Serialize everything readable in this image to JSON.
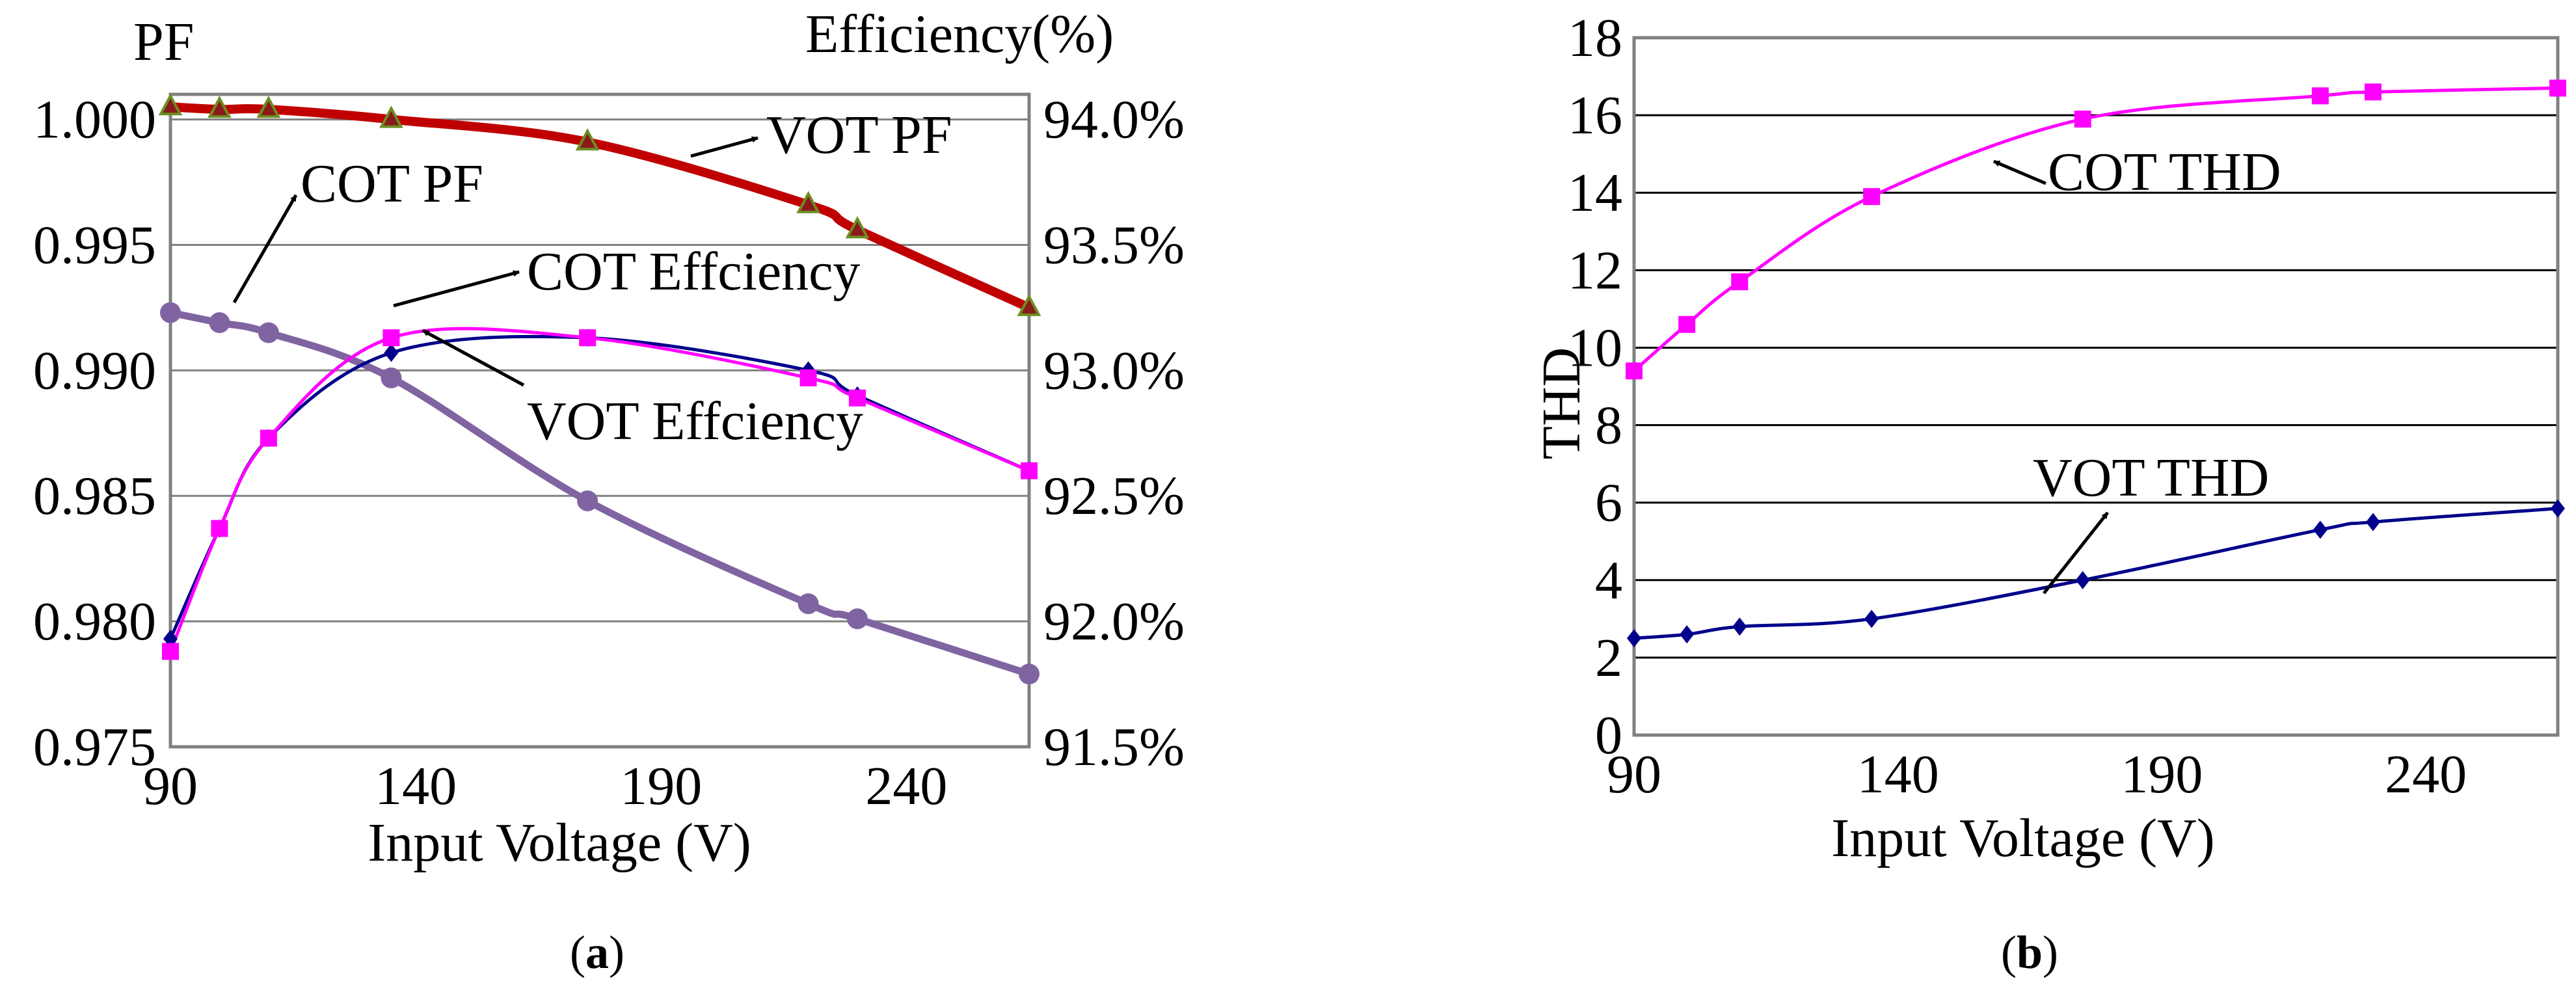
{
  "chart_data": [
    {
      "panel": "a",
      "panel_label": "a",
      "type": "line",
      "xlabel": "Input Voltage (V)",
      "ylabel_left": "PF",
      "ylabel_right": "Efficiency(%)",
      "xlim": [
        90,
        265
      ],
      "xticks": [
        90,
        140,
        190,
        240
      ],
      "ylim_left": [
        0.975,
        1.001
      ],
      "yticks_left": [
        "0.975",
        "0.980",
        "0.985",
        "0.990",
        "0.995",
        "1.000"
      ],
      "ylim_right": [
        91.5,
        94.1
      ],
      "yticks_right": [
        "91.5%",
        "92.0%",
        "92.5%",
        "93.0%",
        "93.5%",
        "94.0%"
      ],
      "grid": "horizontal",
      "series": [
        {
          "name": "VOT PF",
          "axis": "left",
          "color": "#C00000",
          "marker": "triangle",
          "x": [
            90,
            100,
            110,
            135,
            175,
            220,
            230,
            265
          ],
          "y": [
            1.0005,
            1.0004,
            1.0004,
            1.0,
            0.9991,
            0.9966,
            0.9956,
            0.9925
          ]
        },
        {
          "name": "COT PF",
          "axis": "left",
          "color": "#8064A2",
          "marker": "circle",
          "x": [
            90,
            100,
            110,
            135,
            175,
            220,
            230,
            265
          ],
          "y": [
            0.9923,
            0.9919,
            0.9915,
            0.9897,
            0.9848,
            0.9807,
            0.9801,
            0.9779
          ]
        },
        {
          "name": "VOT Effciency",
          "axis": "right",
          "color": "#00008B",
          "marker": "diamond",
          "x": [
            90,
            100,
            110,
            135,
            175,
            220,
            230,
            265
          ],
          "y": [
            91.93,
            92.37,
            92.73,
            93.07,
            93.13,
            93.0,
            92.9,
            92.6
          ]
        },
        {
          "name": "COT Effciency",
          "axis": "right",
          "color": "#FF00FF",
          "marker": "square",
          "x": [
            90,
            100,
            110,
            135,
            175,
            220,
            230,
            265
          ],
          "y": [
            91.88,
            92.37,
            92.73,
            93.13,
            93.13,
            92.97,
            92.89,
            92.6
          ]
        }
      ],
      "annotations": [
        "VOT PF",
        "COT PF",
        "COT Effciency",
        "VOT Effciency"
      ]
    },
    {
      "panel": "b",
      "panel_label": "b",
      "type": "line",
      "xlabel": "Input Voltage (V)",
      "ylabel": "THD",
      "xlim": [
        90,
        265
      ],
      "xticks": [
        90,
        140,
        190,
        240
      ],
      "ylim": [
        0,
        18
      ],
      "yticks": [
        0,
        2,
        4,
        6,
        8,
        10,
        12,
        14,
        16,
        18
      ],
      "grid": "horizontal",
      "series": [
        {
          "name": "COT THD",
          "color": "#FF00FF",
          "marker": "square",
          "x": [
            90,
            100,
            110,
            135,
            175,
            220,
            230,
            265
          ],
          "y": [
            9.4,
            10.6,
            11.7,
            13.9,
            15.9,
            16.5,
            16.6,
            16.7
          ]
        },
        {
          "name": "VOT THD",
          "color": "#00008B",
          "marker": "diamond",
          "x": [
            90,
            100,
            110,
            135,
            175,
            220,
            230,
            265
          ],
          "y": [
            2.5,
            2.6,
            2.8,
            3.0,
            4.0,
            5.3,
            5.5,
            5.85
          ]
        }
      ],
      "annotations": [
        "COT THD",
        "VOT THD"
      ]
    }
  ]
}
